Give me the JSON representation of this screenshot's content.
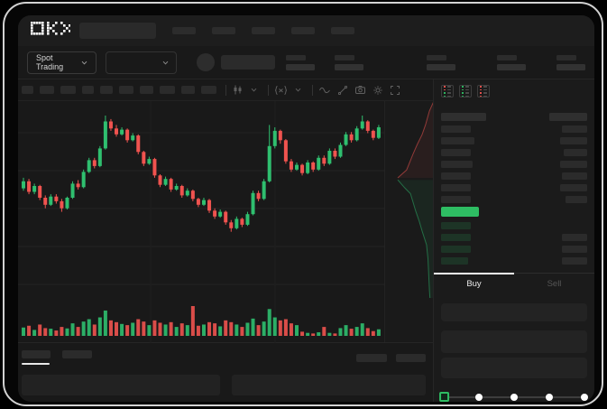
{
  "app": {
    "name": "OKX spot trading terminal",
    "logo_text": "OKX"
  },
  "colors": {
    "accent_green": "#2EBD63",
    "candle_up": "#2FBF6F",
    "candle_down": "#F0534F",
    "depth_ask_line": "rgba(239,83,80,0.55)",
    "depth_ask_fill": "rgba(239,83,80,0.07)",
    "depth_bid_line": "rgba(46,189,112,0.5)",
    "depth_bid_fill": "rgba(46,189,112,0.08)"
  },
  "nav": {
    "item_count": 5
  },
  "ticker": {
    "market_label": "Spot Trading",
    "stats_margins": [
      12,
      22,
      70,
      46,
      34
    ]
  },
  "toolbar": {
    "placeholder_widths": [
      13,
      16,
      17,
      13,
      14,
      16,
      15,
      17,
      15,
      17
    ],
    "icons": [
      "divider",
      "candlestick-icon",
      "chevron-down-icon",
      "divider",
      "fx-indicator-icon",
      "chevron-down-icon",
      "divider",
      "wave-icon",
      "trendline-icon",
      "camera-icon",
      "gear-icon",
      "expand-icon"
    ]
  },
  "orderbook": {
    "toggle_modes": [
      "book-both",
      "book-bids",
      "book-asks"
    ],
    "header": {
      "l": 50,
      "r": 42
    },
    "asks": [
      {
        "l": 33,
        "r": 28
      },
      {
        "l": 37,
        "r": 30
      },
      {
        "l": 33,
        "r": 26
      },
      {
        "l": 35,
        "r": 30
      },
      {
        "l": 33,
        "r": 28
      },
      {
        "l": 33,
        "r": 30
      },
      {
        "l": 33,
        "r": 24
      }
    ],
    "bids": [
      {
        "l": 33,
        "r": 0
      },
      {
        "l": 33,
        "r": 28
      },
      {
        "l": 33,
        "r": 28
      },
      {
        "l": 30,
        "r": 28
      }
    ]
  },
  "trade": {
    "buy_tab": "Buy",
    "sell_tab": "Sell",
    "field_count": 3,
    "slider_stops_pct": [
      0,
      25,
      50,
      75,
      100
    ],
    "slider_value_pct": 0
  },
  "chart_data": {
    "type": "candlestick",
    "title": "",
    "grid": {
      "h_lines": [
        35,
        77,
        119,
        161,
        203
      ],
      "v_lines": [
        147,
        285
      ]
    },
    "scale_note": "values normalized 0-100, 100 = chart high",
    "candles": [
      [
        38,
        44,
        47,
        36
      ],
      [
        44,
        35,
        46,
        33
      ],
      [
        35,
        40,
        42,
        33
      ],
      [
        40,
        30,
        41,
        28
      ],
      [
        30,
        24,
        32,
        21
      ],
      [
        24,
        31,
        33,
        23
      ],
      [
        31,
        27,
        33,
        25
      ],
      [
        27,
        21,
        29,
        18
      ],
      [
        21,
        30,
        31,
        20
      ],
      [
        30,
        42,
        44,
        29
      ],
      [
        42,
        39,
        45,
        37
      ],
      [
        39,
        52,
        54,
        38
      ],
      [
        52,
        62,
        64,
        51
      ],
      [
        62,
        57,
        64,
        55
      ],
      [
        57,
        72,
        74,
        56
      ],
      [
        72,
        95,
        100,
        71
      ],
      [
        95,
        89,
        97,
        87
      ],
      [
        89,
        84,
        92,
        82
      ],
      [
        84,
        88,
        90,
        83
      ],
      [
        88,
        79,
        89,
        77
      ],
      [
        79,
        83,
        85,
        78
      ],
      [
        83,
        69,
        84,
        67
      ],
      [
        69,
        59,
        70,
        57
      ],
      [
        59,
        63,
        65,
        58
      ],
      [
        63,
        49,
        64,
        47
      ],
      [
        49,
        41,
        50,
        39
      ],
      [
        41,
        46,
        48,
        40
      ],
      [
        46,
        37,
        47,
        35
      ],
      [
        37,
        40,
        42,
        36
      ],
      [
        40,
        32,
        41,
        30
      ],
      [
        32,
        36,
        38,
        31
      ],
      [
        36,
        29,
        37,
        27
      ],
      [
        29,
        24,
        30,
        22
      ],
      [
        24,
        28,
        30,
        23
      ],
      [
        28,
        19,
        29,
        17
      ],
      [
        19,
        14,
        21,
        12
      ],
      [
        14,
        18,
        20,
        13
      ],
      [
        18,
        9,
        19,
        7
      ],
      [
        9,
        4,
        11,
        1
      ],
      [
        4,
        12,
        14,
        3
      ],
      [
        12,
        7,
        13,
        5
      ],
      [
        7,
        16,
        18,
        6
      ],
      [
        16,
        34,
        36,
        15
      ],
      [
        34,
        29,
        36,
        27
      ],
      [
        29,
        44,
        46,
        28
      ],
      [
        44,
        74,
        92,
        43
      ],
      [
        74,
        87,
        90,
        72
      ],
      [
        87,
        79,
        88,
        76
      ],
      [
        79,
        61,
        80,
        59
      ],
      [
        61,
        54,
        63,
        52
      ],
      [
        54,
        58,
        60,
        53
      ],
      [
        58,
        51,
        59,
        49
      ],
      [
        51,
        60,
        62,
        50
      ],
      [
        60,
        54,
        61,
        52
      ],
      [
        54,
        64,
        66,
        53
      ],
      [
        64,
        59,
        66,
        57
      ],
      [
        59,
        70,
        72,
        58
      ],
      [
        70,
        65,
        72,
        63
      ],
      [
        65,
        75,
        77,
        64
      ],
      [
        75,
        84,
        86,
        74
      ],
      [
        84,
        79,
        86,
        77
      ],
      [
        79,
        89,
        91,
        78
      ],
      [
        89,
        95,
        100,
        88
      ],
      [
        95,
        87,
        96,
        85
      ],
      [
        87,
        81,
        88,
        79
      ],
      [
        81,
        90,
        92,
        80
      ]
    ],
    "volumes": [
      28,
      34,
      20,
      38,
      26,
      24,
      18,
      30,
      25,
      42,
      30,
      48,
      56,
      38,
      62,
      85,
      52,
      46,
      40,
      36,
      44,
      56,
      48,
      36,
      52,
      44,
      38,
      46,
      30,
      42,
      36,
      100,
      34,
      38,
      46,
      42,
      32,
      52,
      46,
      38,
      30,
      44,
      58,
      36,
      48,
      90,
      62,
      52,
      56,
      42,
      36,
      14,
      10,
      8,
      12,
      30,
      10,
      8,
      26,
      36,
      24,
      30,
      42,
      26,
      16,
      22
    ],
    "depth": {
      "asks": [
        [
          100,
          0
        ],
        [
          91,
          5
        ],
        [
          83,
          12
        ],
        [
          76,
          17
        ],
        [
          66,
          22
        ],
        [
          57,
          27
        ],
        [
          44,
          35
        ],
        [
          26,
          39
        ]
      ],
      "bids": [
        [
          26,
          40
        ],
        [
          40,
          44
        ],
        [
          52,
          47
        ],
        [
          63,
          56
        ],
        [
          70,
          61
        ],
        [
          76,
          66
        ],
        [
          85,
          73
        ],
        [
          88,
          80
        ],
        [
          89,
          86
        ],
        [
          91,
          96
        ],
        [
          92,
          100
        ]
      ]
    }
  }
}
